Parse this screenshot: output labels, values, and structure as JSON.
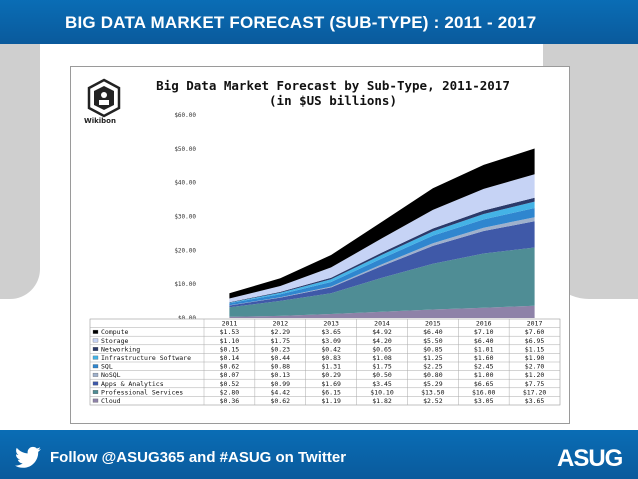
{
  "header": {
    "title": "BIG DATA MARKET FORECAST (SUB-TYPE) :  2011 - 2017"
  },
  "logo": {
    "label": "Wikibon"
  },
  "footer": {
    "text": "Follow @ASUG365 and #ASUG on Twitter",
    "brand": "ASUG"
  },
  "icons": {
    "left": "twitter-bird-icon",
    "right": "asug-logo"
  },
  "colors": {
    "bar": "#0a62a8",
    "grey": "#cfcfcf"
  },
  "chart_data": {
    "type": "area",
    "title": "Big Data Market Forecast by Sub-Type, 2011-2017",
    "subtitle": "(in $US billions)",
    "categories": [
      "2011",
      "2012",
      "2013",
      "2014",
      "2015",
      "2016",
      "2017"
    ],
    "ylim": [
      0,
      60
    ],
    "yticks": [
      "$0.00",
      "$10.00",
      "$20.00",
      "$30.00",
      "$40.00",
      "$50.00",
      "$60.00"
    ],
    "stack_order": [
      "Cloud",
      "Professional Services",
      "Apps & Analytics",
      "NoSQL",
      "SQL",
      "Infrastructure Software",
      "Networking",
      "Storage",
      "Compute"
    ],
    "series": [
      {
        "name": "Compute",
        "color": "#000000",
        "values": [
          1.53,
          2.29,
          3.65,
          4.92,
          6.4,
          7.1,
          7.6
        ],
        "labels": [
          "$1.53",
          "$2.29",
          "$3.65",
          "$4.92",
          "$6.40",
          "$7.10",
          "$7.60"
        ]
      },
      {
        "name": "Storage",
        "color": "#c6d3f5",
        "values": [
          1.1,
          1.75,
          3.09,
          4.2,
          5.5,
          6.4,
          6.95
        ],
        "labels": [
          "$1.10",
          "$1.75",
          "$3.09",
          "$4.20",
          "$5.50",
          "$6.40",
          "$6.95"
        ]
      },
      {
        "name": "Networking",
        "color": "#2b3a6a",
        "values": [
          0.15,
          0.23,
          0.42,
          0.65,
          0.85,
          1.01,
          1.15
        ],
        "labels": [
          "$0.15",
          "$0.23",
          "$0.42",
          "$0.65",
          "$0.85",
          "$1.01",
          "$1.15"
        ]
      },
      {
        "name": "Infrastructure Software",
        "color": "#44b3e6",
        "values": [
          0.14,
          0.44,
          0.83,
          1.08,
          1.25,
          1.6,
          1.9
        ],
        "labels": [
          "$0.14",
          "$0.44",
          "$0.83",
          "$1.08",
          "$1.25",
          "$1.60",
          "$1.90"
        ]
      },
      {
        "name": "SQL",
        "color": "#2f86cf",
        "values": [
          0.62,
          0.88,
          1.31,
          1.75,
          2.25,
          2.45,
          2.7
        ],
        "labels": [
          "$0.62",
          "$0.88",
          "$1.31",
          "$1.75",
          "$2.25",
          "$2.45",
          "$2.70"
        ]
      },
      {
        "name": "NoSQL",
        "color": "#9fb1cc",
        "values": [
          0.07,
          0.13,
          0.29,
          0.5,
          0.8,
          1.0,
          1.2
        ],
        "labels": [
          "$0.07",
          "$0.13",
          "$0.29",
          "$0.50",
          "$0.80",
          "$1.00",
          "$1.20"
        ]
      },
      {
        "name": "Apps & Analytics",
        "color": "#3f59a8",
        "values": [
          0.52,
          0.99,
          1.69,
          3.45,
          5.29,
          6.65,
          7.75
        ],
        "labels": [
          "$0.52",
          "$0.99",
          "$1.69",
          "$3.45",
          "$5.29",
          "$6.65",
          "$7.75"
        ]
      },
      {
        "name": "Professional Services",
        "color": "#4f8d95",
        "values": [
          2.8,
          4.42,
          6.15,
          10.1,
          13.5,
          16.0,
          17.2
        ],
        "labels": [
          "$2.80",
          "$4.42",
          "$6.15",
          "$10.10",
          "$13.50",
          "$16.00",
          "$17.20"
        ]
      },
      {
        "name": "Cloud",
        "color": "#8e82a8",
        "values": [
          0.36,
          0.62,
          1.19,
          1.82,
          2.52,
          3.05,
          3.65
        ],
        "labels": [
          "$0.36",
          "$0.62",
          "$1.19",
          "$1.82",
          "$2.52",
          "$3.05",
          "$3.65"
        ]
      }
    ]
  }
}
